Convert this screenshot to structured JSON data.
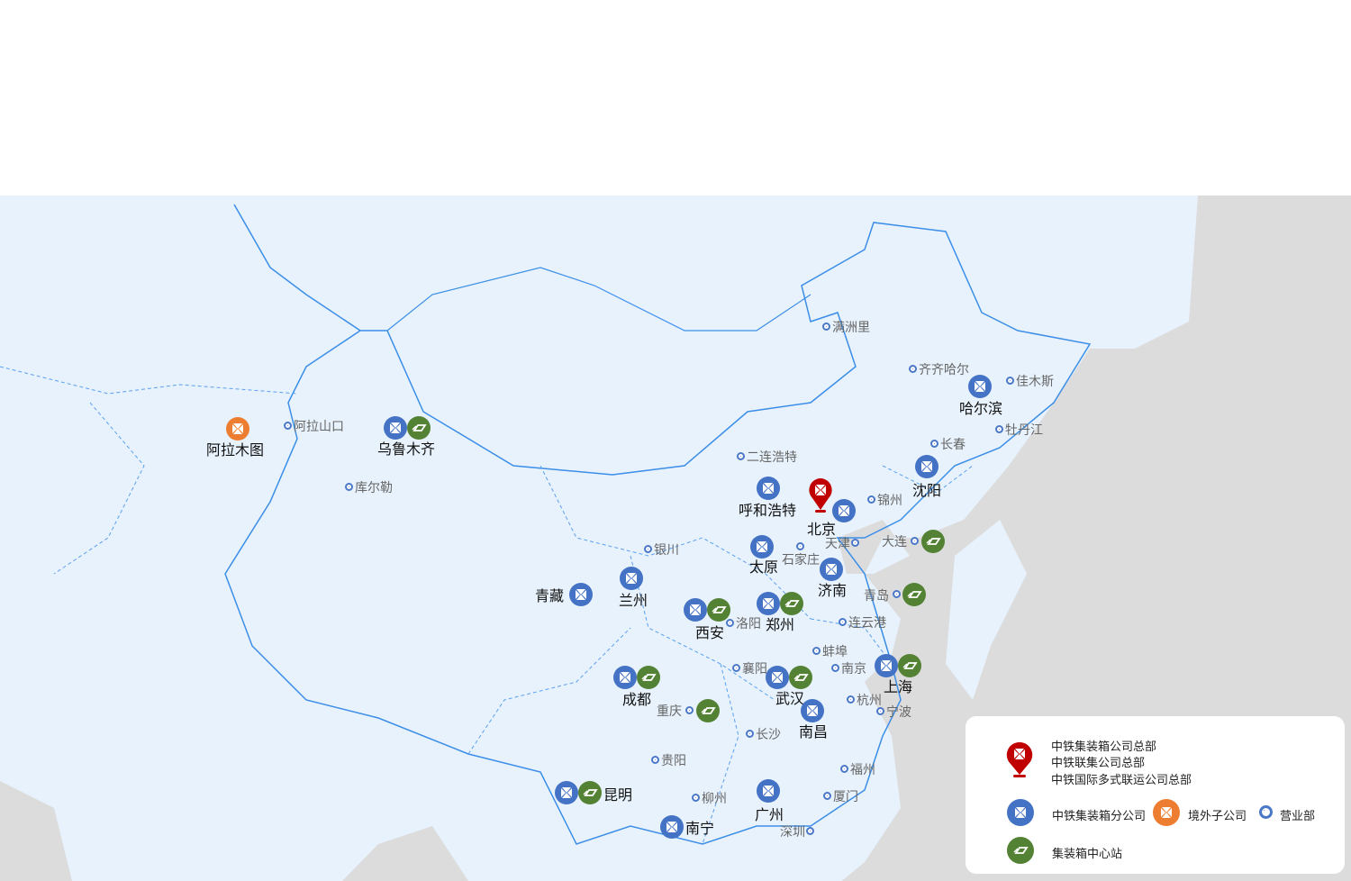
{
  "colors": {
    "branch": "#4472c4",
    "hq": "#c00000",
    "overseas": "#ed7d31",
    "center": "#548235",
    "office": "#4a78c8",
    "land": "#e8f2fc",
    "foreign": "#dcdcdc",
    "border": "#3b8ee8"
  },
  "cities": [
    {
      "name": "乌鲁木齐",
      "types": [
        "branch",
        "center"
      ]
    },
    {
      "name": "阿拉木图",
      "types": [
        "overseas"
      ]
    },
    {
      "name": "哈尔滨",
      "types": [
        "branch"
      ]
    },
    {
      "name": "沈阳",
      "types": [
        "branch"
      ]
    },
    {
      "name": "呼和浩特",
      "types": [
        "branch"
      ]
    },
    {
      "name": "北京",
      "types": [
        "hq",
        "branch"
      ]
    },
    {
      "name": "太原",
      "types": [
        "branch"
      ]
    },
    {
      "name": "济南",
      "types": [
        "branch"
      ]
    },
    {
      "name": "兰州",
      "types": [
        "branch"
      ]
    },
    {
      "name": "青藏",
      "types": [
        "branch"
      ]
    },
    {
      "name": "西安",
      "types": [
        "branch",
        "center"
      ]
    },
    {
      "name": "郑州",
      "types": [
        "branch",
        "center"
      ]
    },
    {
      "name": "成都",
      "types": [
        "branch",
        "center"
      ]
    },
    {
      "name": "武汉",
      "types": [
        "branch",
        "center"
      ]
    },
    {
      "name": "上海",
      "types": [
        "branch",
        "center"
      ]
    },
    {
      "name": "南昌",
      "types": [
        "branch"
      ]
    },
    {
      "name": "昆明",
      "types": [
        "branch",
        "center"
      ]
    },
    {
      "name": "南宁",
      "types": [
        "branch"
      ]
    },
    {
      "name": "广州",
      "types": [
        "branch"
      ]
    },
    {
      "name": "重庆",
      "types": [
        "office",
        "center"
      ]
    },
    {
      "name": "大连",
      "types": [
        "office",
        "center"
      ]
    },
    {
      "name": "青岛",
      "types": [
        "office",
        "center"
      ]
    }
  ],
  "offices": [
    "满洲里",
    "齐齐哈尔",
    "佳木斯",
    "牡丹江",
    "长春",
    "二连浩特",
    "锦州",
    "阿拉山口",
    "库尔勒",
    "银川",
    "天津",
    "石家庄",
    "洛阳",
    "连云港",
    "蚌埠",
    "襄阳",
    "南京",
    "杭州",
    "宁波",
    "长沙",
    "贵阳",
    "福州",
    "厦门",
    "柳州",
    "深圳"
  ],
  "legend": {
    "hq_lines": [
      "中铁集装箱公司总部",
      "中铁联集公司总部",
      "中铁国际多式联运公司总部"
    ],
    "branch": "中铁集装箱分公司",
    "overseas": "境外子公司",
    "office": "营业部",
    "center": "集装箱中心站"
  }
}
